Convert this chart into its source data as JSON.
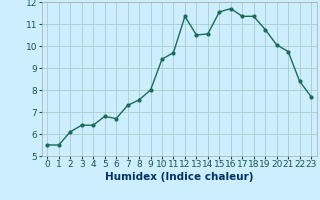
{
  "x": [
    0,
    1,
    2,
    3,
    4,
    5,
    6,
    7,
    8,
    9,
    10,
    11,
    12,
    13,
    14,
    15,
    16,
    17,
    18,
    19,
    20,
    21,
    22,
    23
  ],
  "y": [
    5.5,
    5.5,
    6.1,
    6.4,
    6.4,
    6.8,
    6.7,
    7.3,
    7.55,
    8.0,
    9.4,
    9.7,
    11.35,
    10.5,
    10.55,
    11.55,
    11.7,
    11.35,
    11.35,
    10.75,
    10.05,
    9.75,
    8.4,
    7.7
  ],
  "line_color": "#1a6b5a",
  "marker": "o",
  "marker_size": 2.0,
  "line_width": 1.0,
  "bg_color": "#cceeff",
  "grid_color": "#aacccc",
  "xlabel": "Humidex (Indice chaleur)",
  "ylim": [
    5,
    12
  ],
  "xlim": [
    -0.5,
    23.5
  ],
  "yticks": [
    5,
    6,
    7,
    8,
    9,
    10,
    11,
    12
  ],
  "xticks": [
    0,
    1,
    2,
    3,
    4,
    5,
    6,
    7,
    8,
    9,
    10,
    11,
    12,
    13,
    14,
    15,
    16,
    17,
    18,
    19,
    20,
    21,
    22,
    23
  ],
  "tick_fontsize": 6.5,
  "label_fontsize": 7.5,
  "label_color": "#003366",
  "tick_color": "#1a5555"
}
